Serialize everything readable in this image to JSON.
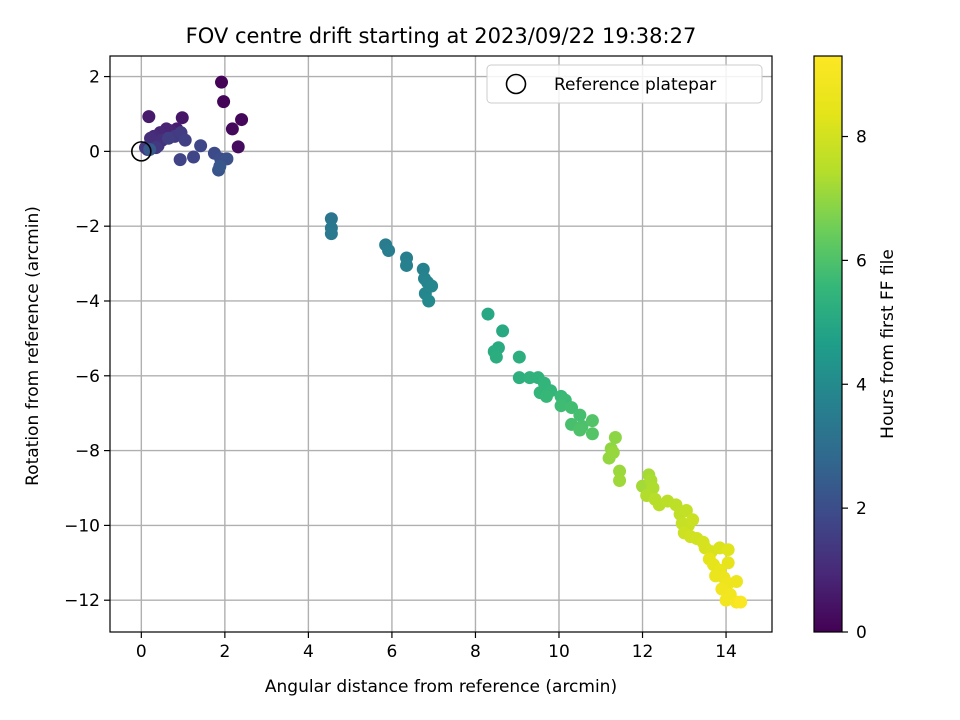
{
  "chart_data": {
    "type": "scatter",
    "title": "FOV centre drift starting at 2023/09/22 19:38:27",
    "xlabel": "Angular distance from reference (arcmin)",
    "ylabel": "Rotation from reference (arcmin)",
    "xlim": [
      -0.75,
      15.1
    ],
    "ylim": [
      -12.85,
      2.55
    ],
    "xticks": [
      0,
      2,
      4,
      6,
      8,
      10,
      12,
      14
    ],
    "yticks": [
      2,
      0,
      -2,
      -4,
      -6,
      -8,
      -10,
      -12
    ],
    "grid": true,
    "legend": {
      "placement": "top-right",
      "entries": [
        "Reference platepar"
      ]
    },
    "reference_point": {
      "x": 0,
      "y": 0
    },
    "colorbar": {
      "label": "Hours from first FF file",
      "colormap": "viridis",
      "range": [
        0,
        9.3
      ],
      "ticks": [
        0,
        2,
        4,
        6,
        8
      ]
    },
    "points": [
      {
        "x": 1.92,
        "y": 1.85,
        "c": 0.05
      },
      {
        "x": 1.97,
        "y": 1.33,
        "c": 0.1
      },
      {
        "x": 2.4,
        "y": 0.85,
        "c": 0.15
      },
      {
        "x": 2.18,
        "y": 0.6,
        "c": 0.2
      },
      {
        "x": 2.32,
        "y": 0.12,
        "c": 0.25
      },
      {
        "x": 0.98,
        "y": 0.9,
        "c": 0.5
      },
      {
        "x": 0.18,
        "y": 0.93,
        "c": 0.6
      },
      {
        "x": 0.85,
        "y": 0.6,
        "c": 0.7
      },
      {
        "x": 0.7,
        "y": 0.55,
        "c": 0.8
      },
      {
        "x": 0.6,
        "y": 0.6,
        "c": 0.85
      },
      {
        "x": 0.45,
        "y": 0.5,
        "c": 0.9
      },
      {
        "x": 0.3,
        "y": 0.4,
        "c": 1.0
      },
      {
        "x": 0.22,
        "y": 0.35,
        "c": 1.1
      },
      {
        "x": 0.5,
        "y": 0.3,
        "c": 1.15
      },
      {
        "x": 0.4,
        "y": 0.15,
        "c": 1.2
      },
      {
        "x": 0.15,
        "y": 0.05,
        "c": 1.3
      },
      {
        "x": 0.1,
        "y": 0.1,
        "c": 1.35
      },
      {
        "x": 0.35,
        "y": 0.1,
        "c": 1.4
      },
      {
        "x": 0.8,
        "y": 0.4,
        "c": 1.45
      },
      {
        "x": 0.95,
        "y": 0.5,
        "c": 1.5
      },
      {
        "x": 0.65,
        "y": 0.35,
        "c": 1.55
      },
      {
        "x": 1.05,
        "y": 0.3,
        "c": 1.6
      },
      {
        "x": 0.93,
        "y": -0.22,
        "c": 1.7
      },
      {
        "x": 1.25,
        "y": -0.15,
        "c": 1.75
      },
      {
        "x": 1.42,
        "y": 0.15,
        "c": 1.8
      },
      {
        "x": 1.75,
        "y": -0.05,
        "c": 1.9
      },
      {
        "x": 1.9,
        "y": -0.2,
        "c": 2.0
      },
      {
        "x": 2.05,
        "y": -0.2,
        "c": 2.1
      },
      {
        "x": 1.85,
        "y": -0.5,
        "c": 2.2
      },
      {
        "x": 1.88,
        "y": -0.4,
        "c": 2.3
      },
      {
        "x": 0.2,
        "y": 0.05,
        "c": 2.35
      },
      {
        "x": 4.55,
        "y": -1.8,
        "c": 3.3
      },
      {
        "x": 4.55,
        "y": -2.05,
        "c": 3.35
      },
      {
        "x": 4.55,
        "y": -2.2,
        "c": 3.4
      },
      {
        "x": 5.85,
        "y": -2.5,
        "c": 3.5
      },
      {
        "x": 5.92,
        "y": -2.65,
        "c": 3.55
      },
      {
        "x": 6.35,
        "y": -2.85,
        "c": 3.6
      },
      {
        "x": 6.35,
        "y": -3.05,
        "c": 3.65
      },
      {
        "x": 6.75,
        "y": -3.15,
        "c": 3.7
      },
      {
        "x": 6.78,
        "y": -3.4,
        "c": 3.75
      },
      {
        "x": 6.85,
        "y": -3.5,
        "c": 3.8
      },
      {
        "x": 6.95,
        "y": -3.6,
        "c": 3.85
      },
      {
        "x": 6.8,
        "y": -3.8,
        "c": 3.9
      },
      {
        "x": 6.88,
        "y": -4.0,
        "c": 3.95
      },
      {
        "x": 8.3,
        "y": -4.35,
        "c": 5.0
      },
      {
        "x": 8.65,
        "y": -4.8,
        "c": 5.05
      },
      {
        "x": 8.55,
        "y": -5.25,
        "c": 5.1
      },
      {
        "x": 8.45,
        "y": -5.35,
        "c": 5.15
      },
      {
        "x": 8.5,
        "y": -5.5,
        "c": 5.2
      },
      {
        "x": 9.05,
        "y": -5.5,
        "c": 5.25
      },
      {
        "x": 9.05,
        "y": -6.05,
        "c": 5.3
      },
      {
        "x": 9.3,
        "y": -6.05,
        "c": 5.35
      },
      {
        "x": 9.5,
        "y": -6.05,
        "c": 5.4
      },
      {
        "x": 9.65,
        "y": -6.2,
        "c": 5.45
      },
      {
        "x": 9.55,
        "y": -6.45,
        "c": 5.5
      },
      {
        "x": 9.8,
        "y": -6.4,
        "c": 5.55
      },
      {
        "x": 9.7,
        "y": -6.55,
        "c": 5.6
      },
      {
        "x": 10.05,
        "y": -6.55,
        "c": 5.65
      },
      {
        "x": 10.15,
        "y": -6.65,
        "c": 5.7
      },
      {
        "x": 10.05,
        "y": -6.8,
        "c": 5.75
      },
      {
        "x": 10.3,
        "y": -6.85,
        "c": 5.8
      },
      {
        "x": 10.5,
        "y": -7.05,
        "c": 5.85
      },
      {
        "x": 10.3,
        "y": -7.3,
        "c": 5.9
      },
      {
        "x": 10.55,
        "y": -7.35,
        "c": 5.95
      },
      {
        "x": 10.5,
        "y": -7.45,
        "c": 6.0
      },
      {
        "x": 10.8,
        "y": -7.2,
        "c": 6.05
      },
      {
        "x": 10.8,
        "y": -7.55,
        "c": 6.1
      },
      {
        "x": 11.35,
        "y": -7.65,
        "c": 6.9
      },
      {
        "x": 11.25,
        "y": -7.95,
        "c": 6.95
      },
      {
        "x": 11.2,
        "y": -8.2,
        "c": 7.0
      },
      {
        "x": 11.3,
        "y": -8.05,
        "c": 7.05
      },
      {
        "x": 11.45,
        "y": -8.55,
        "c": 7.1
      },
      {
        "x": 11.45,
        "y": -8.8,
        "c": 7.15
      },
      {
        "x": 12.0,
        "y": -8.95,
        "c": 7.2
      },
      {
        "x": 12.15,
        "y": -8.65,
        "c": 7.25
      },
      {
        "x": 12.2,
        "y": -8.8,
        "c": 7.3
      },
      {
        "x": 12.25,
        "y": -9.0,
        "c": 7.35
      },
      {
        "x": 12.1,
        "y": -9.2,
        "c": 7.4
      },
      {
        "x": 12.3,
        "y": -9.3,
        "c": 7.45
      },
      {
        "x": 12.4,
        "y": -9.45,
        "c": 7.5
      },
      {
        "x": 12.6,
        "y": -9.35,
        "c": 7.55
      },
      {
        "x": 12.8,
        "y": -9.45,
        "c": 7.6
      },
      {
        "x": 12.9,
        "y": -9.7,
        "c": 7.65
      },
      {
        "x": 13.05,
        "y": -9.6,
        "c": 7.7
      },
      {
        "x": 12.95,
        "y": -9.95,
        "c": 7.75
      },
      {
        "x": 13.1,
        "y": -10.0,
        "c": 7.8
      },
      {
        "x": 13.2,
        "y": -9.85,
        "c": 7.85
      },
      {
        "x": 13.0,
        "y": -10.2,
        "c": 7.9
      },
      {
        "x": 13.15,
        "y": -10.3,
        "c": 7.95
      },
      {
        "x": 13.3,
        "y": -10.35,
        "c": 8.0
      },
      {
        "x": 13.45,
        "y": -10.45,
        "c": 8.05
      },
      {
        "x": 13.5,
        "y": -10.6,
        "c": 8.1
      },
      {
        "x": 13.65,
        "y": -10.7,
        "c": 8.15
      },
      {
        "x": 13.85,
        "y": -10.6,
        "c": 8.2
      },
      {
        "x": 14.05,
        "y": -10.65,
        "c": 8.3
      },
      {
        "x": 13.6,
        "y": -10.9,
        "c": 8.4
      },
      {
        "x": 13.7,
        "y": -11.05,
        "c": 8.45
      },
      {
        "x": 14.05,
        "y": -11.0,
        "c": 8.5
      },
      {
        "x": 13.85,
        "y": -11.2,
        "c": 8.55
      },
      {
        "x": 13.75,
        "y": -11.35,
        "c": 8.6
      },
      {
        "x": 13.95,
        "y": -11.4,
        "c": 8.65
      },
      {
        "x": 14.25,
        "y": -11.5,
        "c": 8.7
      },
      {
        "x": 14.05,
        "y": -11.55,
        "c": 8.75
      },
      {
        "x": 13.9,
        "y": -11.7,
        "c": 8.8
      },
      {
        "x": 14.1,
        "y": -11.85,
        "c": 8.85
      },
      {
        "x": 14.0,
        "y": -12.0,
        "c": 8.9
      },
      {
        "x": 14.25,
        "y": -12.05,
        "c": 9.0
      },
      {
        "x": 14.35,
        "y": -12.05,
        "c": 9.2
      }
    ]
  }
}
